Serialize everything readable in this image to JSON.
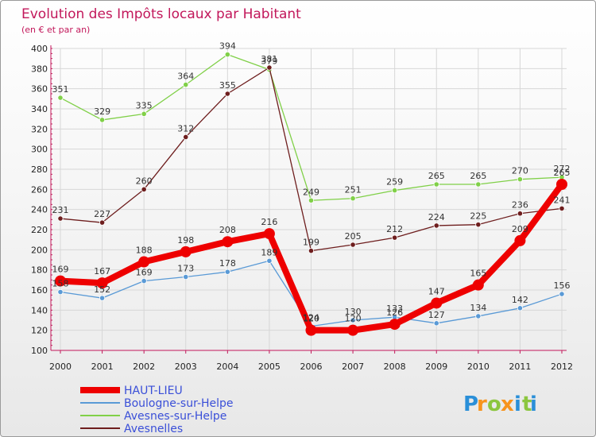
{
  "chart_data": {
    "type": "line",
    "title": "Evolution des Impôts locaux par Habitant",
    "subtitle": "(en € et par an)",
    "categories": [
      "2000",
      "2001",
      "2002",
      "2003",
      "2004",
      "2005",
      "2006",
      "2007",
      "2008",
      "2009",
      "2010",
      "2011",
      "2012"
    ],
    "yticks": [
      "100",
      "120",
      "140",
      "160",
      "180",
      "200",
      "220",
      "240",
      "260",
      "280",
      "300",
      "320",
      "340",
      "360",
      "380",
      "400"
    ],
    "ylim": [
      100,
      400
    ],
    "series": [
      {
        "name": "Avesnes-sur-Helpe",
        "color": "#80d048",
        "values": [
          351,
          329,
          335,
          364,
          394,
          379,
          249,
          251,
          259,
          265,
          265,
          270,
          272
        ],
        "labels": [
          "351",
          "329",
          "335",
          "364",
          "394",
          "379",
          "249",
          "251",
          "259",
          "265",
          "265",
          "270",
          "272"
        ]
      },
      {
        "name": "Avesnelles",
        "color": "#6e1e1e",
        "values": [
          231,
          227,
          260,
          312,
          355,
          381,
          199,
          205,
          212,
          224,
          225,
          236,
          241
        ],
        "labels": [
          "231",
          "227",
          "260",
          "312",
          "355",
          "381",
          "199",
          "205",
          "212",
          "224",
          "225",
          "236",
          "241"
        ]
      },
      {
        "name": "Boulogne-sur-Helpe",
        "color": "#5a9ad6",
        "values": [
          158,
          152,
          169,
          173,
          178,
          189,
          124,
          130,
          133,
          127,
          134,
          142,
          156
        ],
        "labels": [
          "158",
          "152",
          "169",
          "173",
          "178",
          "189",
          "124",
          "130",
          "133",
          "127",
          "134",
          "142",
          "156"
        ]
      },
      {
        "name": "HAUT-LIEU",
        "color": "#ee0000",
        "values": [
          169,
          167,
          188,
          198,
          208,
          216,
          120,
          120,
          126,
          147,
          165,
          209,
          265
        ],
        "labels": [
          "169",
          "167",
          "188",
          "198",
          "208",
          "216",
          "120",
          "120",
          "126",
          "147",
          "165",
          "209",
          "265"
        ]
      }
    ],
    "legend": [
      "HAUT-LIEU",
      "Boulogne-sur-Helpe",
      "Avesnes-sur-Helpe",
      "Avesnelles"
    ],
    "legend_colors": [
      "#ee0000",
      "#5a9ad6",
      "#80d048",
      "#6e1e1e"
    ]
  },
  "logo": {
    "letters": [
      "P",
      "r",
      "o",
      "x",
      "i",
      "t",
      "i"
    ],
    "colors": [
      "#2a8fd8",
      "#f7941d",
      "#8cc63f",
      "#f7941d",
      "#2a8fd8",
      "#8cc63f",
      "#2a8fd8"
    ]
  }
}
